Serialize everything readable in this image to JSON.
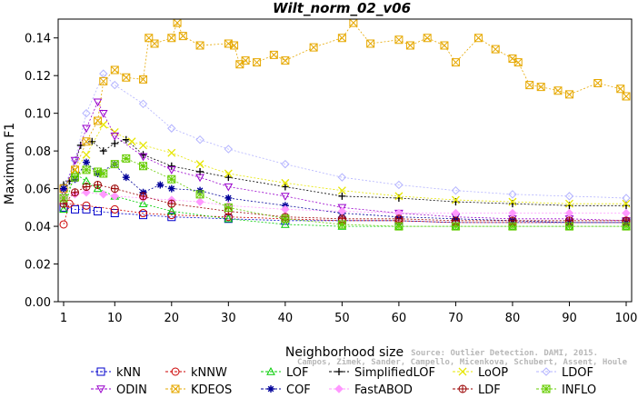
{
  "chart_data": {
    "type": "line",
    "title": "Wilt_norm_02_v06",
    "xlabel": "Neighborhood size",
    "ylabel": "Maximum F1",
    "xlim": [
      1,
      100
    ],
    "ylim": [
      0,
      0.15
    ],
    "xticks": [
      1,
      10,
      20,
      30,
      40,
      50,
      60,
      70,
      80,
      90,
      100
    ],
    "yticks": [
      0,
      0.02,
      0.04,
      0.06,
      0.08,
      0.1,
      0.12,
      0.14
    ],
    "ytick_labels": [
      "0.00",
      "0.02",
      "0.04",
      "0.06",
      "0.08",
      "0.10",
      "0.12",
      "0.14"
    ],
    "grid": false,
    "legend_position": "bottom",
    "watermark": [
      "Source: Outlier Detection. DAMI, 2015.",
      "Campos, Zimek, Sander, Campello, Micenkova, Schubert, Assent, Houle"
    ],
    "series": [
      {
        "name": "kNN",
        "color": "#0000cc",
        "marker": "square",
        "x": [
          1,
          3,
          5,
          7,
          10,
          15,
          20,
          30,
          40,
          50,
          60,
          70,
          80,
          90,
          100
        ],
        "y": [
          0.05,
          0.049,
          0.049,
          0.048,
          0.047,
          0.046,
          0.045,
          0.044,
          0.043,
          0.043,
          0.043,
          0.042,
          0.042,
          0.042,
          0.042
        ]
      },
      {
        "name": "kNNW",
        "color": "#cc0000",
        "marker": "circle",
        "x": [
          1,
          2,
          5,
          10,
          15,
          20,
          30,
          40,
          50,
          60,
          70,
          80,
          90,
          100
        ],
        "y": [
          0.041,
          0.052,
          0.051,
          0.049,
          0.047,
          0.046,
          0.045,
          0.044,
          0.043,
          0.043,
          0.042,
          0.042,
          0.042,
          0.042
        ]
      },
      {
        "name": "LOF",
        "color": "#00cc00",
        "marker": "triangle-up",
        "x": [
          1,
          3,
          5,
          7,
          10,
          15,
          20,
          30,
          40,
          50,
          60,
          70,
          80,
          90,
          100
        ],
        "y": [
          0.049,
          0.068,
          0.064,
          0.06,
          0.056,
          0.052,
          0.048,
          0.044,
          0.041,
          0.04,
          0.04,
          0.04,
          0.04,
          0.04,
          0.04
        ]
      },
      {
        "name": "SimplifiedLOF",
        "color": "#000000",
        "marker": "plus",
        "x": [
          1,
          2,
          4,
          6,
          8,
          10,
          12,
          15,
          20,
          25,
          30,
          40,
          50,
          60,
          70,
          80,
          90,
          100
        ],
        "y": [
          0.062,
          0.064,
          0.083,
          0.085,
          0.08,
          0.084,
          0.086,
          0.078,
          0.072,
          0.069,
          0.066,
          0.061,
          0.056,
          0.055,
          0.053,
          0.052,
          0.051,
          0.051
        ]
      },
      {
        "name": "LoOP",
        "color": "#e6e600",
        "marker": "cross",
        "x": [
          1,
          3,
          5,
          8,
          10,
          13,
          15,
          20,
          25,
          30,
          40,
          50,
          60,
          70,
          80,
          90,
          100
        ],
        "y": [
          0.06,
          0.07,
          0.078,
          0.094,
          0.09,
          0.085,
          0.083,
          0.079,
          0.073,
          0.068,
          0.063,
          0.059,
          0.056,
          0.054,
          0.053,
          0.052,
          0.052
        ]
      },
      {
        "name": "LDOF",
        "color": "#b3b3ff",
        "marker": "diamond",
        "x": [
          1,
          3,
          5,
          8,
          10,
          15,
          20,
          25,
          30,
          40,
          50,
          60,
          70,
          80,
          90,
          100
        ],
        "y": [
          0.06,
          0.075,
          0.1,
          0.121,
          0.115,
          0.105,
          0.092,
          0.086,
          0.081,
          0.073,
          0.066,
          0.062,
          0.059,
          0.057,
          0.056,
          0.055
        ]
      },
      {
        "name": "ODIN",
        "color": "#9900cc",
        "marker": "triangle-down",
        "x": [
          1,
          3,
          5,
          7,
          8,
          10,
          15,
          20,
          25,
          30,
          40,
          50,
          60,
          70,
          80,
          90,
          100
        ],
        "y": [
          0.058,
          0.075,
          0.092,
          0.106,
          0.1,
          0.088,
          0.077,
          0.07,
          0.066,
          0.061,
          0.056,
          0.05,
          0.047,
          0.045,
          0.044,
          0.044,
          0.043
        ]
      },
      {
        "name": "KDEOS",
        "color": "#e6a800",
        "marker": "square-x",
        "x": [
          1,
          3,
          5,
          7,
          8,
          10,
          12,
          15,
          16,
          17,
          20,
          21,
          22,
          25,
          30,
          31,
          32,
          33,
          35,
          38,
          40,
          45,
          50,
          52,
          55,
          60,
          62,
          65,
          68,
          70,
          74,
          77,
          80,
          81,
          83,
          85,
          88,
          90,
          95,
          99,
          100
        ],
        "y": [
          0.06,
          0.07,
          0.085,
          0.096,
          0.117,
          0.123,
          0.119,
          0.118,
          0.14,
          0.137,
          0.14,
          0.148,
          0.141,
          0.136,
          0.137,
          0.136,
          0.126,
          0.128,
          0.127,
          0.131,
          0.128,
          0.135,
          0.14,
          0.148,
          0.137,
          0.139,
          0.136,
          0.14,
          0.136,
          0.127,
          0.14,
          0.134,
          0.129,
          0.127,
          0.115,
          0.114,
          0.112,
          0.11,
          0.116,
          0.113,
          0.109
        ]
      },
      {
        "name": "COF",
        "color": "#000099",
        "marker": "asterisk",
        "x": [
          1,
          3,
          5,
          7,
          10,
          12,
          15,
          18,
          20,
          25,
          30,
          40,
          50,
          60,
          70,
          80,
          90,
          100
        ],
        "y": [
          0.06,
          0.065,
          0.074,
          0.068,
          0.073,
          0.066,
          0.058,
          0.062,
          0.06,
          0.059,
          0.055,
          0.051,
          0.047,
          0.045,
          0.044,
          0.043,
          0.042,
          0.042
        ]
      },
      {
        "name": "FastABOD",
        "color": "#ff99ff",
        "marker": "diamond-filled",
        "x": [
          1,
          3,
          5,
          8,
          10,
          15,
          20,
          25,
          30,
          40,
          50,
          60,
          70,
          80,
          90,
          100
        ],
        "y": [
          0.055,
          0.057,
          0.058,
          0.057,
          0.056,
          0.055,
          0.054,
          0.053,
          0.051,
          0.049,
          0.048,
          0.047,
          0.047,
          0.047,
          0.047,
          0.047
        ]
      },
      {
        "name": "LDF",
        "color": "#990000",
        "marker": "circle-plus",
        "x": [
          1,
          3,
          5,
          7,
          10,
          15,
          20,
          30,
          40,
          50,
          60,
          70,
          80,
          90,
          100
        ],
        "y": [
          0.052,
          0.058,
          0.061,
          0.062,
          0.06,
          0.056,
          0.052,
          0.048,
          0.045,
          0.044,
          0.044,
          0.043,
          0.043,
          0.043,
          0.043
        ]
      },
      {
        "name": "INFLO",
        "color": "#66cc00",
        "marker": "square-asterisk",
        "x": [
          1,
          3,
          5,
          7,
          8,
          10,
          12,
          15,
          20,
          25,
          30,
          40,
          50,
          60,
          70,
          80,
          90,
          100
        ],
        "y": [
          0.055,
          0.066,
          0.07,
          0.069,
          0.068,
          0.073,
          0.076,
          0.072,
          0.065,
          0.057,
          0.05,
          0.044,
          0.041,
          0.04,
          0.04,
          0.04,
          0.04,
          0.04
        ]
      }
    ]
  }
}
